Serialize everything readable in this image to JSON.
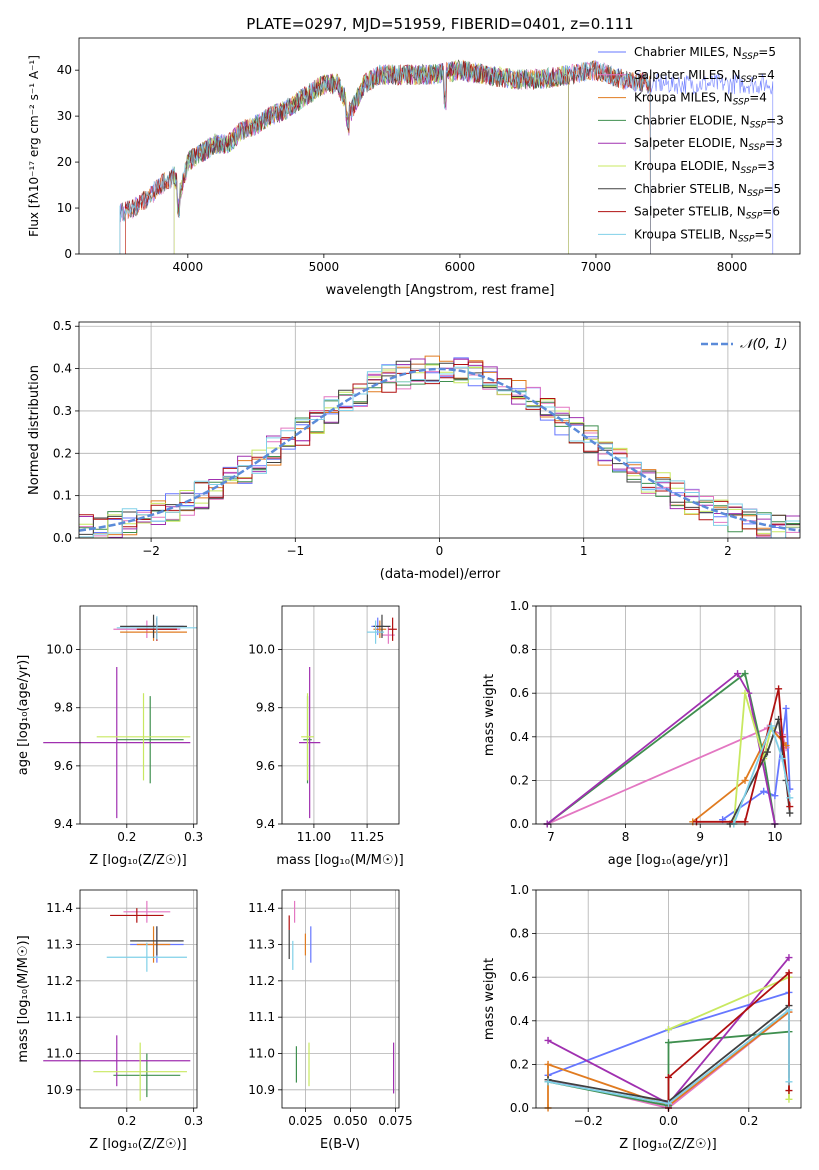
{
  "colors": {
    "chabrier_miles": "#6677ff",
    "salpeter_miles": "#e377c2",
    "kroupa_miles": "#e07b20",
    "chabrier_elodie": "#3f8f4f",
    "salpeter_elodie": "#a030b0",
    "kroupa_elodie": "#c8e860",
    "chabrier_stelib": "#404040",
    "salpeter_stelib": "#b01010",
    "kroupa_stelib": "#80d0e8",
    "normal_line": "#5b8bd9"
  },
  "chart_data": [
    {
      "id": "spectrum",
      "type": "line",
      "title": "PLATE=0297, MJD=51959, FIBERID=0401, z=0.111",
      "xlabel": "wavelength [Angstrom, rest frame]",
      "ylabel": "Flux [fλ10⁻¹⁷ erg cm⁻² s⁻¹ A⁻¹]",
      "xlim": [
        3200,
        8500
      ],
      "ylim": [
        0,
        47
      ],
      "xticks": [
        "4000",
        "5000",
        "6000",
        "7000",
        "8000"
      ],
      "yticks": [
        "0",
        "10",
        "20",
        "30",
        "40"
      ],
      "grid": false,
      "legend": "top-right",
      "legend_entries": [
        {
          "label": "Chabrier MILES, N",
          "sub": "SSP",
          "tail": "=5"
        },
        {
          "label": "Salpeter MILES, N",
          "sub": "SSP",
          "tail": "=4"
        },
        {
          "label": "Kroupa MILES, N",
          "sub": "SSP",
          "tail": "=4"
        },
        {
          "label": "Chabrier ELODIE, N",
          "sub": "SSP",
          "tail": "=3"
        },
        {
          "label": "Salpeter ELODIE, N",
          "sub": "SSP",
          "tail": "=3"
        },
        {
          "label": "Kroupa ELODIE, N",
          "sub": "SSP",
          "tail": "=3"
        },
        {
          "label": "Chabrier STELIB, N",
          "sub": "SSP",
          "tail": "=5"
        },
        {
          "label": "Salpeter STELIB, N",
          "sub": "SSP",
          "tail": "=6"
        },
        {
          "label": "Kroupa STELIB, N",
          "sub": "SSP",
          "tail": "=5"
        }
      ],
      "continuum": {
        "x": [
          3500,
          3600,
          3700,
          3800,
          3900,
          3950,
          4000,
          4100,
          4200,
          4300,
          4400,
          4500,
          4600,
          4700,
          4800,
          4900,
          5000,
          5100,
          5200,
          5300,
          5400,
          5500,
          5600,
          5800,
          6000,
          6200,
          6400,
          6600,
          6800,
          7000,
          7200,
          7400
        ],
        "y": [
          9,
          10,
          12,
          15,
          17,
          14,
          20,
          22,
          24,
          24,
          27,
          28,
          30,
          31,
          33,
          35,
          37,
          37,
          31,
          37,
          39,
          39,
          39,
          39,
          40,
          39,
          38,
          38,
          39,
          40,
          38,
          37
        ]
      },
      "series_ranges": [
        {
          "key": "chabrier_miles",
          "xmin": 3500,
          "xmax": 8300
        },
        {
          "key": "salpeter_miles",
          "xmin": 3500,
          "xmax": 7400
        },
        {
          "key": "kroupa_miles",
          "xmin": 3540,
          "xmax": 7400
        },
        {
          "key": "chabrier_elodie",
          "xmin": 3900,
          "xmax": 6800
        },
        {
          "key": "salpeter_elodie",
          "xmin": 3900,
          "xmax": 6800
        },
        {
          "key": "kroupa_elodie",
          "xmin": 3900,
          "xmax": 6800
        },
        {
          "key": "chabrier_stelib",
          "xmin": 3500,
          "xmax": 7400
        },
        {
          "key": "salpeter_stelib",
          "xmin": 3540,
          "xmax": 7400
        },
        {
          "key": "kroupa_stelib",
          "xmin": 3500,
          "xmax": 7400
        }
      ]
    },
    {
      "id": "residuals",
      "type": "line",
      "xlabel": "(data-model)/error",
      "ylabel": "Normed distribution",
      "xlim": [
        -2.5,
        2.5
      ],
      "ylim": [
        0,
        0.51
      ],
      "xticks": [
        "−2",
        "−1",
        "0",
        "1",
        "2"
      ],
      "yticks": [
        "0.0",
        "0.1",
        "0.2",
        "0.3",
        "0.4",
        "0.5"
      ],
      "grid": true,
      "legend": "top-right",
      "normal_label": "𝒩(0, 1)",
      "bin_width": 0.1
    },
    {
      "id": "age_vs_Z",
      "type": "scatter",
      "xlabel": "Z [log₁₀(Z/Z☉)]",
      "ylabel": "age  [log₁₀(age/yr)]",
      "xlim": [
        0.13,
        0.305
      ],
      "ylim": [
        9.4,
        10.15
      ],
      "xticks": [
        "0.2",
        "0.3"
      ],
      "yticks": [
        "9.4",
        "9.6",
        "9.8",
        "10.0"
      ],
      "points": [
        {
          "key": "chabrier_miles",
          "x": 0.245,
          "y": 10.08,
          "xerr": 0.04,
          "yerr": 0.03
        },
        {
          "key": "salpeter_miles",
          "x": 0.23,
          "y": 10.07,
          "xerr": 0.05,
          "yerr": 0.03
        },
        {
          "key": "kroupa_miles",
          "x": 0.24,
          "y": 10.06,
          "xerr": 0.05,
          "yerr": 0.03
        },
        {
          "key": "chabrier_elodie",
          "x": 0.235,
          "y": 9.69,
          "xerr": 0.05,
          "yerr": 0.15
        },
        {
          "key": "salpeter_elodie",
          "x": 0.185,
          "y": 9.68,
          "xerr": 0.11,
          "yerr": 0.26
        },
        {
          "key": "kroupa_elodie",
          "x": 0.225,
          "y": 9.7,
          "xerr": 0.07,
          "yerr": 0.15
        },
        {
          "key": "chabrier_stelib",
          "x": 0.24,
          "y": 10.08,
          "xerr": 0.05,
          "yerr": 0.04
        },
        {
          "key": "salpeter_stelib",
          "x": 0.245,
          "y": 10.07,
          "xerr": 0.03,
          "yerr": 0.04
        },
        {
          "key": "kroupa_stelib",
          "x": 0.245,
          "y": 10.075,
          "xerr": 0.06,
          "yerr": 0.04
        }
      ]
    },
    {
      "id": "age_vs_mass",
      "type": "scatter",
      "xlabel": "mass [log₁₀(M/M☉)]",
      "xlim": [
        10.85,
        11.4
      ],
      "ylim": [
        9.4,
        10.15
      ],
      "xticks": [
        "11.00",
        "11.25"
      ],
      "yticks": [
        "9.4",
        "9.6",
        "9.8",
        "10.0"
      ],
      "points": [
        {
          "key": "chabrier_miles",
          "x": 11.3,
          "y": 10.08,
          "xerr": 0.03,
          "yerr": 0.03
        },
        {
          "key": "salpeter_miles",
          "x": 11.35,
          "y": 10.05,
          "xerr": 0.03,
          "yerr": 0.03
        },
        {
          "key": "kroupa_miles",
          "x": 11.31,
          "y": 10.07,
          "xerr": 0.03,
          "yerr": 0.03
        },
        {
          "key": "chabrier_elodie",
          "x": 10.97,
          "y": 9.69,
          "xerr": 0.02,
          "yerr": 0.15
        },
        {
          "key": "salpeter_elodie",
          "x": 10.98,
          "y": 9.68,
          "xerr": 0.05,
          "yerr": 0.26
        },
        {
          "key": "kroupa_elodie",
          "x": 10.97,
          "y": 9.7,
          "xerr": 0.03,
          "yerr": 0.15
        },
        {
          "key": "chabrier_stelib",
          "x": 11.32,
          "y": 10.08,
          "xerr": 0.04,
          "yerr": 0.04
        },
        {
          "key": "salpeter_stelib",
          "x": 11.37,
          "y": 10.07,
          "xerr": 0.02,
          "yerr": 0.04
        },
        {
          "key": "kroupa_stelib",
          "x": 11.29,
          "y": 10.06,
          "xerr": 0.04,
          "yerr": 0.04
        }
      ]
    },
    {
      "id": "mass_weight_vs_age",
      "type": "line",
      "xlabel": "age  [log₁₀(age/yr)]",
      "ylabel": "mass weight",
      "xlim": [
        6.8,
        10.35
      ],
      "ylim": [
        0,
        1
      ],
      "xticks": [
        "7",
        "8",
        "9",
        "10"
      ],
      "yticks": [
        "0.0",
        "0.2",
        "0.4",
        "0.6",
        "0.8",
        "1.0"
      ],
      "series": [
        {
          "key": "chabrier_miles",
          "x": [
            9.3,
            9.85,
            10.0,
            10.15,
            10.2
          ],
          "y": [
            0.02,
            0.15,
            0.13,
            0.53,
            0.16
          ]
        },
        {
          "key": "salpeter_miles",
          "x": [
            6.95,
            9.9,
            10.1,
            10.15
          ],
          "y": [
            0.0,
            0.44,
            0.41,
            0.35
          ]
        },
        {
          "key": "kroupa_miles",
          "x": [
            8.9,
            9.6,
            9.95,
            10.15
          ],
          "y": [
            0.01,
            0.2,
            0.44,
            0.36
          ]
        },
        {
          "key": "chabrier_elodie",
          "x": [
            6.95,
            9.6,
            9.85,
            10.0
          ],
          "y": [
            0.0,
            0.69,
            0.31,
            0.0
          ]
        },
        {
          "key": "salpeter_elodie",
          "x": [
            6.95,
            9.5,
            9.65,
            10.0
          ],
          "y": [
            0.0,
            0.69,
            0.6,
            0.0
          ]
        },
        {
          "key": "kroupa_elodie",
          "x": [
            9.45,
            9.6,
            9.85,
            9.95
          ],
          "y": [
            0.0,
            0.6,
            0.3,
            0.44
          ]
        },
        {
          "key": "chabrier_stelib",
          "x": [
            9.4,
            9.9,
            10.05,
            10.15,
            10.2
          ],
          "y": [
            0.0,
            0.33,
            0.48,
            0.2,
            0.05
          ]
        },
        {
          "key": "salpeter_stelib",
          "x": [
            8.95,
            9.6,
            10.05,
            10.1,
            10.2
          ],
          "y": [
            0.01,
            0.01,
            0.62,
            0.4,
            0.08
          ]
        },
        {
          "key": "kroupa_stelib",
          "x": [
            9.45,
            9.95,
            10.1,
            10.2
          ],
          "y": [
            0.0,
            0.45,
            0.3,
            0.12
          ]
        }
      ]
    },
    {
      "id": "mass_vs_Z",
      "type": "scatter",
      "xlabel": "Z [log₁₀(Z/Z☉)]",
      "ylabel": "mass [log₁₀(M/M☉)]",
      "xlim": [
        0.13,
        0.305
      ],
      "ylim": [
        10.85,
        11.45
      ],
      "xticks": [
        "0.2",
        "0.3"
      ],
      "yticks": [
        "10.9",
        "11.0",
        "11.1",
        "11.2",
        "11.3",
        "11.4"
      ],
      "points": [
        {
          "key": "chabrier_miles",
          "x": 0.245,
          "y": 11.3,
          "xerr": 0.04,
          "yerr": 0.05
        },
        {
          "key": "salpeter_miles",
          "x": 0.23,
          "y": 11.39,
          "xerr": 0.035,
          "yerr": 0.03
        },
        {
          "key": "kroupa_miles",
          "x": 0.24,
          "y": 11.3,
          "xerr": 0.025,
          "yerr": 0.05
        },
        {
          "key": "chabrier_elodie",
          "x": 0.23,
          "y": 10.94,
          "xerr": 0.05,
          "yerr": 0.06
        },
        {
          "key": "salpeter_elodie",
          "x": 0.185,
          "y": 10.98,
          "xerr": 0.11,
          "yerr": 0.07
        },
        {
          "key": "kroupa_elodie",
          "x": 0.22,
          "y": 10.95,
          "xerr": 0.07,
          "yerr": 0.08
        },
        {
          "key": "chabrier_stelib",
          "x": 0.245,
          "y": 11.31,
          "xerr": 0.04,
          "yerr": 0.04
        },
        {
          "key": "salpeter_stelib",
          "x": 0.215,
          "y": 11.38,
          "xerr": 0.04,
          "yerr": 0.02
        },
        {
          "key": "kroupa_stelib",
          "x": 0.23,
          "y": 11.265,
          "xerr": 0.06,
          "yerr": 0.04
        }
      ]
    },
    {
      "id": "mass_vs_ebv",
      "type": "scatter",
      "xlabel": "E(B-V)",
      "xlim": [
        0.012,
        0.077
      ],
      "ylim": [
        10.85,
        11.45
      ],
      "xticks": [
        "0.025",
        "0.050",
        "0.075"
      ],
      "yticks": [
        "10.9",
        "11.0",
        "11.1",
        "11.2",
        "11.3",
        "11.4"
      ],
      "points": [
        {
          "key": "chabrier_miles",
          "x": 0.028,
          "y": 11.3,
          "xerr": 0,
          "yerr": 0.05
        },
        {
          "key": "salpeter_miles",
          "x": 0.019,
          "y": 11.39,
          "xerr": 0,
          "yerr": 0.03
        },
        {
          "key": "kroupa_miles",
          "x": 0.025,
          "y": 11.3,
          "xerr": 0,
          "yerr": 0.03
        },
        {
          "key": "chabrier_elodie",
          "x": 0.02,
          "y": 10.97,
          "xerr": 0,
          "yerr": 0.05
        },
        {
          "key": "salpeter_elodie",
          "x": 0.074,
          "y": 10.96,
          "xerr": 0,
          "yerr": 0.07
        },
        {
          "key": "kroupa_elodie",
          "x": 0.027,
          "y": 10.97,
          "xerr": 0,
          "yerr": 0.06
        },
        {
          "key": "chabrier_stelib",
          "x": 0.016,
          "y": 11.3,
          "xerr": 0,
          "yerr": 0.04
        },
        {
          "key": "salpeter_stelib",
          "x": 0.016,
          "y": 11.36,
          "xerr": 0,
          "yerr": 0.02
        },
        {
          "key": "kroupa_stelib",
          "x": 0.018,
          "y": 11.27,
          "xerr": 0,
          "yerr": 0.04
        }
      ]
    },
    {
      "id": "mass_weight_vs_Z",
      "type": "line",
      "xlabel": "Z [log₁₀(Z/Z☉)]",
      "ylabel": "mass weight",
      "xlim": [
        -0.33,
        0.33
      ],
      "ylim": [
        0,
        1
      ],
      "xticks": [
        "−0.2",
        "0.0",
        "0.2"
      ],
      "yticks": [
        "0.0",
        "0.2",
        "0.4",
        "0.6",
        "0.8",
        "1.0"
      ],
      "series": [
        {
          "key": "chabrier_miles",
          "x": [
            -0.3,
            0.0,
            0.3
          ],
          "y": [
            0.15,
            0.36,
            0.53
          ]
        },
        {
          "key": "salpeter_miles",
          "x": [
            -0.3,
            0.0,
            0.3
          ],
          "y": [
            0.13,
            0.0,
            0.44
          ]
        },
        {
          "key": "kroupa_miles",
          "x": [
            -0.3,
            -0.3,
            0.0,
            0.3
          ],
          "y": [
            0.0,
            0.2,
            0.01,
            0.44
          ]
        },
        {
          "key": "chabrier_elodie",
          "x": [
            -0.3,
            0.0,
            0.0,
            0.3
          ],
          "y": [
            0.12,
            0.01,
            0.3,
            0.35
          ]
        },
        {
          "key": "salpeter_elodie",
          "x": [
            -0.3,
            0.0,
            0.3
          ],
          "y": [
            0.31,
            0.02,
            0.69
          ]
        },
        {
          "key": "kroupa_elodie",
          "x": [
            0.0,
            0.3,
            0.3
          ],
          "y": [
            0.36,
            0.6,
            0.04
          ]
        },
        {
          "key": "chabrier_stelib",
          "x": [
            -0.3,
            0.0,
            0.3
          ],
          "y": [
            0.13,
            0.03,
            0.47
          ]
        },
        {
          "key": "salpeter_stelib",
          "x": [
            0.0,
            0.0,
            0.3,
            0.3
          ],
          "y": [
            0.0,
            0.14,
            0.62,
            0.08
          ]
        },
        {
          "key": "kroupa_stelib",
          "x": [
            -0.3,
            0.0,
            0.3,
            0.3
          ],
          "y": [
            0.12,
            0.02,
            0.45,
            0.12
          ]
        }
      ]
    }
  ]
}
